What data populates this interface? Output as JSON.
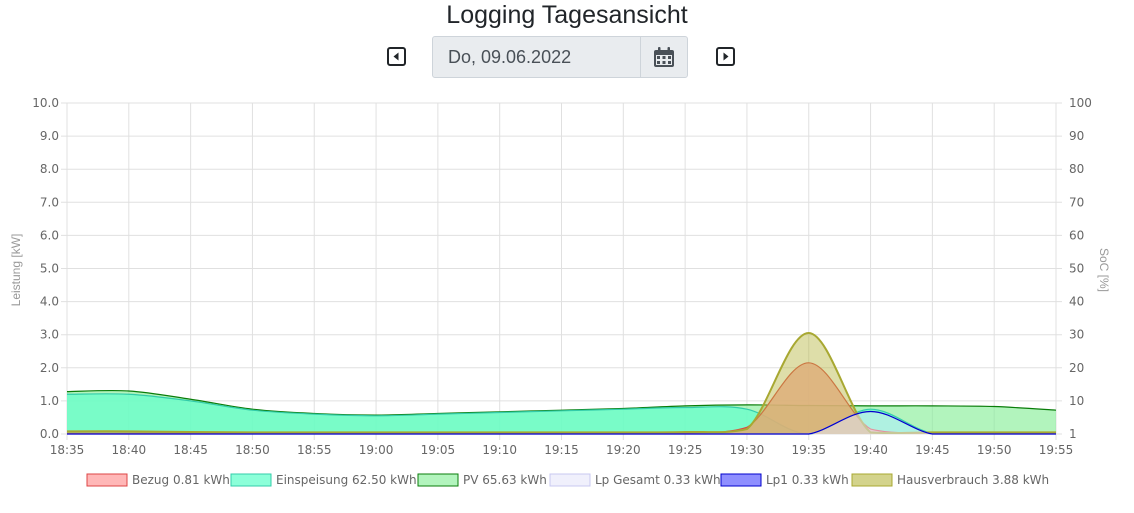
{
  "page": {
    "title": "Logging Tagesansicht"
  },
  "date_picker": {
    "value": "Do, 09.06.2022"
  },
  "icons": {
    "prev": "caret-left-square-icon",
    "next": "caret-right-square-icon",
    "calendar": "calendar-icon"
  },
  "chart_data": {
    "type": "area",
    "x": [
      "18:35",
      "18:40",
      "18:45",
      "18:50",
      "18:55",
      "19:00",
      "19:05",
      "19:10",
      "19:15",
      "19:20",
      "19:25",
      "19:30",
      "19:35",
      "19:40",
      "19:45",
      "19:50",
      "19:55"
    ],
    "xlim": [
      "18:35",
      "19:55"
    ],
    "y_left": {
      "label": "Leistung [kW]",
      "ylim": [
        0,
        10
      ],
      "ticks": [
        "0.0",
        "1.0",
        "2.0",
        "3.0",
        "4.0",
        "5.0",
        "6.0",
        "7.0",
        "8.0",
        "9.0",
        "10.0"
      ]
    },
    "y_right": {
      "label": "SoC [%]",
      "ticks": [
        "1",
        "10",
        "20",
        "30",
        "40",
        "50",
        "60",
        "70",
        "80",
        "90",
        "100"
      ]
    },
    "grid": true,
    "legend_position": "bottom",
    "series": [
      {
        "name": "Bezug 0.81 kWh",
        "fill": "#ffaaaa",
        "stroke": "#dd4444",
        "fill_opacity": 0.85,
        "values": [
          0.02,
          0.02,
          0.02,
          0.02,
          0.02,
          0.02,
          0.02,
          0.02,
          0.02,
          0.02,
          0.03,
          0.2,
          2.15,
          0.15,
          0.02,
          0.02,
          0.02
        ]
      },
      {
        "name": "Einspeisung 62.50 kWh",
        "fill": "#66ffcc",
        "stroke": "#33ccaa",
        "fill_opacity": 0.75,
        "values": [
          1.2,
          1.2,
          1.0,
          0.72,
          0.6,
          0.55,
          0.6,
          0.65,
          0.7,
          0.75,
          0.8,
          0.75,
          0.0,
          0.75,
          0.02,
          0.02,
          0.02
        ]
      },
      {
        "name": "PV 65.63 kWh",
        "fill": "#88ee99",
        "stroke": "#0a7d0a",
        "fill_opacity": 0.65,
        "values": [
          1.28,
          1.3,
          1.05,
          0.75,
          0.62,
          0.57,
          0.62,
          0.67,
          0.72,
          0.77,
          0.85,
          0.88,
          0.86,
          0.85,
          0.85,
          0.83,
          0.72
        ]
      },
      {
        "name": "Lp Gesamt 0.33 kWh",
        "fill": "#e6e6fa",
        "stroke": "#c8c8f0",
        "fill_opacity": 0.5,
        "values": [
          0,
          0,
          0,
          0,
          0,
          0,
          0,
          0,
          0,
          0,
          0,
          0,
          0,
          0.68,
          0,
          0,
          0
        ]
      },
      {
        "name": "Lp1 0.33 kWh",
        "fill": "#4444ff",
        "stroke": "#0000cc",
        "fill_opacity": 0.0,
        "values": [
          0,
          0,
          0,
          0,
          0,
          0,
          0,
          0,
          0,
          0,
          0,
          0,
          0,
          0.68,
          0,
          0,
          0
        ]
      },
      {
        "name": "Hausverbrauch 3.88 kWh",
        "fill": "#b5b540",
        "stroke": "#a8a832",
        "fill_opacity": 0.45,
        "values": [
          0.08,
          0.08,
          0.06,
          0.05,
          0.05,
          0.05,
          0.05,
          0.05,
          0.05,
          0.05,
          0.06,
          0.15,
          3.05,
          0.05,
          0.05,
          0.05,
          0.05
        ]
      }
    ]
  }
}
